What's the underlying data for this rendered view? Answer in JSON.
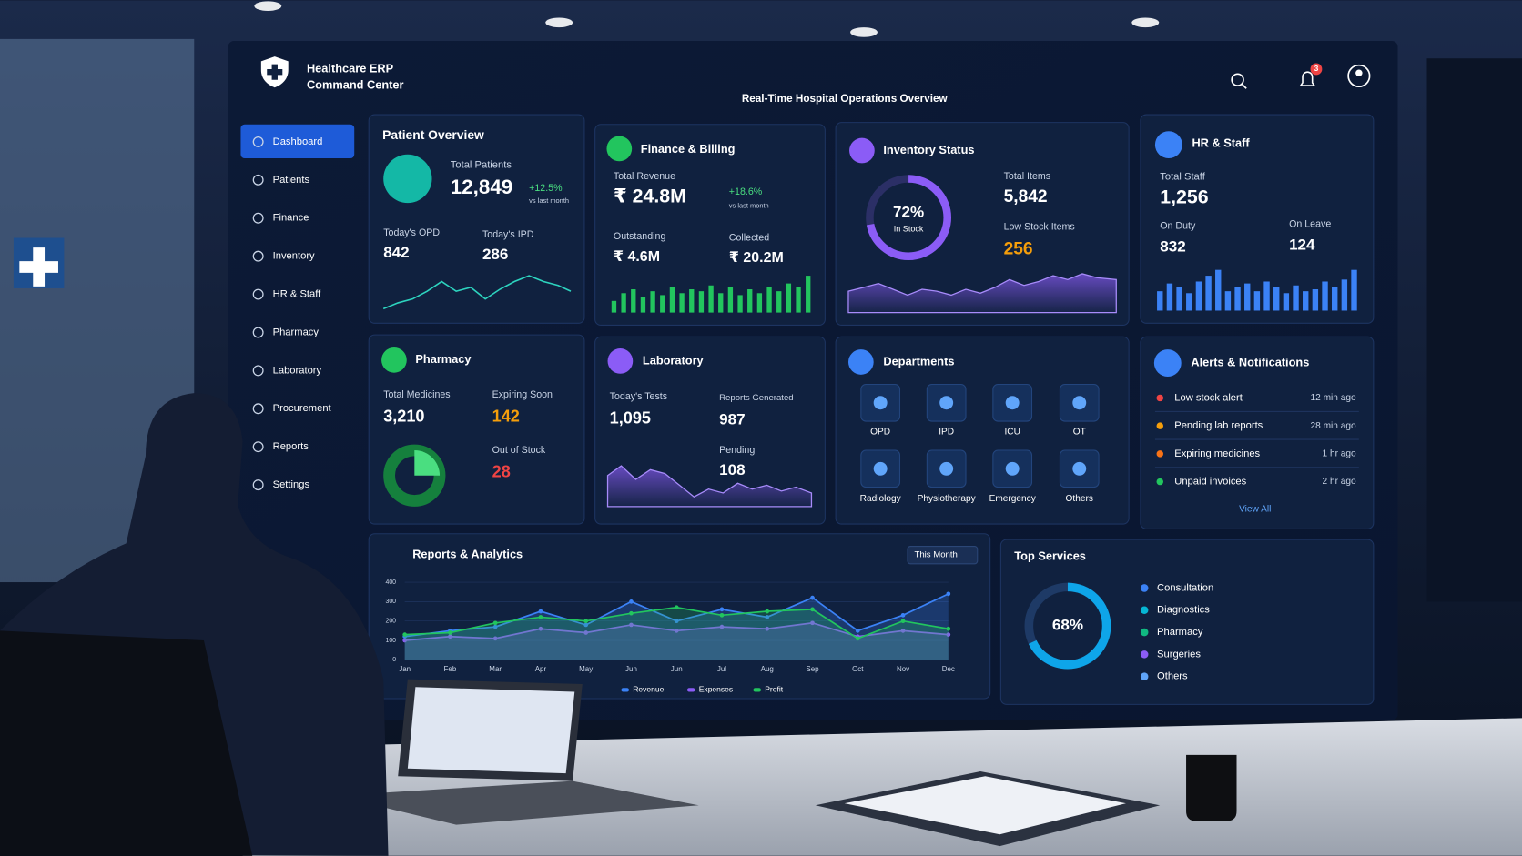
{
  "header": {
    "title_line1": "Healthcare ERP",
    "title_line2": "Command Center",
    "subtitle": "Real-Time Hospital Operations Overview",
    "notification_count": "3"
  },
  "sidebar": [
    "Dashboard",
    "Patients",
    "Finance",
    "Inventory",
    "HR & Staff",
    "Pharmacy",
    "Laboratory",
    "Procurement",
    "Reports",
    "Settings"
  ],
  "patient_overview": {
    "title": "Patient Overview",
    "total_label": "Total Patients",
    "total": "12,849",
    "change": "+12.5%",
    "change_note": "vs last month",
    "opd_label": "Today's OPD",
    "opd": "842",
    "ipd_label": "Today's IPD",
    "ipd": "286"
  },
  "finance": {
    "title": "Finance & Billing",
    "total_label": "Total Revenue",
    "total": "₹ 24.8M",
    "change": "+18.6%",
    "change_note": "vs last month",
    "outstanding_label": "Outstanding",
    "outstanding": "₹ 4.6M",
    "collected_label": "Collected",
    "collected": "₹ 20.2M"
  },
  "inventory": {
    "title": "Inventory Status",
    "in_stock": {
      "value": 72,
      "label": "72%"
    },
    "in_stock_label": "In Stock",
    "total_label": "Total Items",
    "total": "5,842",
    "low_label": "Low Stock Items",
    "low": "256"
  },
  "hr": {
    "title": "HR & Staff",
    "total_label": "Total Staff",
    "total": "1,256",
    "duty_label": "On Duty",
    "duty": "832",
    "leave_label": "On Leave",
    "leave": "124"
  },
  "pharmacy": {
    "title": "Pharmacy",
    "total_label": "Total Medicines",
    "total": "3,210",
    "expiring_label": "Expiring Soon",
    "expiring": "142",
    "out_label": "Out of Stock",
    "out": "28"
  },
  "laboratory": {
    "title": "Laboratory",
    "tests_label": "Today's Tests",
    "tests": "1,095",
    "reports_label": "Reports Generated",
    "reports": "987",
    "pending_label": "Pending",
    "pending": "108"
  },
  "departments": {
    "title": "Departments",
    "items": [
      "OPD",
      "IPD",
      "ICU",
      "OT",
      "Radiology",
      "Physiotherapy",
      "Emergency",
      "Others"
    ]
  },
  "alerts": {
    "title": "Alerts & Notifications",
    "items": [
      {
        "text": "Low stock alert",
        "time": "12 min ago",
        "color": "#ef4444"
      },
      {
        "text": "Pending lab reports",
        "time": "28 min ago",
        "color": "#f59e0b"
      },
      {
        "text": "Expiring medicines",
        "time": "1 hr ago",
        "color": "#f97316"
      },
      {
        "text": "Unpaid invoices",
        "time": "2 hr ago",
        "color": "#22c55e"
      }
    ],
    "view_all": "View All"
  },
  "chart_data": {
    "type": "line",
    "title": "Reports & Analytics",
    "filter": "This Month",
    "categories": [
      "Jan",
      "Feb",
      "Mar",
      "Apr",
      "May",
      "Jun",
      "Jun",
      "Jul",
      "Aug",
      "Sep",
      "Oct",
      "Nov",
      "Dec"
    ],
    "ylim": [
      0,
      400
    ],
    "yticks": [
      0,
      100,
      200,
      300,
      400
    ],
    "series": [
      {
        "name": "Revenue",
        "color": "#3b82f6",
        "values": [
          120,
          150,
          170,
          250,
          180,
          300,
          200,
          260,
          220,
          320,
          150,
          230,
          340
        ]
      },
      {
        "name": "Expenses",
        "color": "#8b5cf6",
        "values": [
          100,
          120,
          110,
          160,
          140,
          180,
          150,
          170,
          160,
          190,
          120,
          150,
          130
        ]
      },
      {
        "name": "Profit",
        "color": "#22c55e",
        "values": [
          130,
          140,
          190,
          220,
          200,
          240,
          270,
          230,
          250,
          260,
          110,
          200,
          160
        ]
      }
    ]
  },
  "top_services": {
    "title": "Top Services",
    "share": {
      "value": 68,
      "label": "68%"
    },
    "items": [
      {
        "name": "Consultation",
        "color": "#3b82f6"
      },
      {
        "name": "Diagnostics",
        "color": "#06b6d4"
      },
      {
        "name": "Pharmacy",
        "color": "#10b981"
      },
      {
        "name": "Surgeries",
        "color": "#8b5cf6"
      },
      {
        "name": "Others",
        "color": "#60a5fa"
      }
    ]
  }
}
